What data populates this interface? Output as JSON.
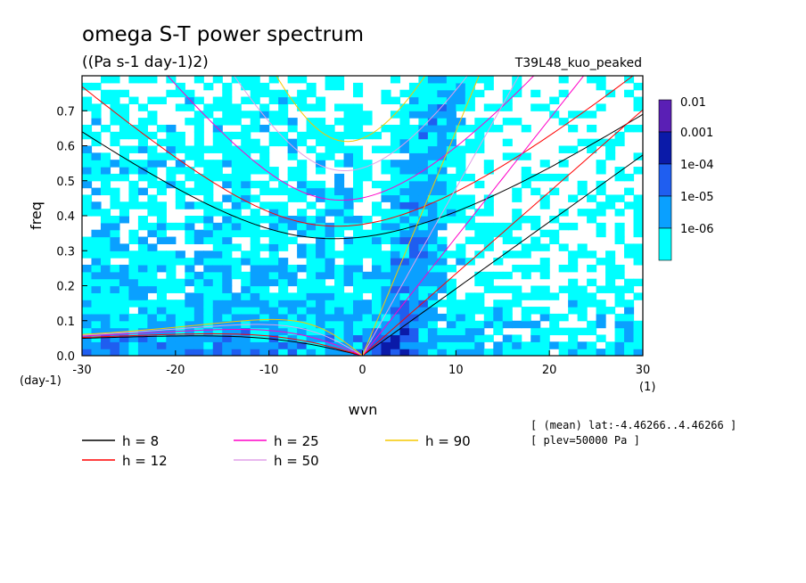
{
  "chart_data": {
    "type": "heatmap",
    "title": "omega S-T power spectrum",
    "subtitle": "((Pa s-1 day-1)2)",
    "experiment": "T39L48_kuo_peaked",
    "xlabel": "wvn",
    "ylabel": "freq",
    "x_unit": "(1)",
    "y_unit": "(day-1)",
    "xlim": [
      -30,
      30
    ],
    "ylim": [
      0,
      0.8
    ],
    "x_ticks": [
      "-30",
      "-20",
      "-10",
      "0",
      "10",
      "20",
      "30"
    ],
    "y_ticks": [
      "0.0",
      "0.1",
      "0.2",
      "0.3",
      "0.4",
      "0.5",
      "0.6",
      "0.7"
    ],
    "colorbar": {
      "labels": [
        "0.01",
        "0.001",
        "1e-04",
        "1e-05",
        "1e-06"
      ],
      "colors": [
        "#5a1fb5",
        "#0a1aa8",
        "#1f5ef0",
        "#0aa0ff",
        "#00ffff"
      ]
    },
    "contour_levels": [
      1e-06,
      1e-05,
      0.0001,
      0.001,
      0.01
    ],
    "dispersion_curves": [
      {
        "name": "h =  8",
        "color": "#000000",
        "h": 8
      },
      {
        "name": "h = 12",
        "color": "#ff0000",
        "h": 12
      },
      {
        "name": "h = 25",
        "color": "#ff00c8",
        "h": 25
      },
      {
        "name": "h = 50",
        "color": "#e0a0e8",
        "h": 50
      },
      {
        "name": "h = 90",
        "color": "#f5c800",
        "h": 90
      }
    ],
    "annotations": [
      "[ (mean) lat:-4.46266..4.46266 ]",
      "[ plev=50000 Pa ]"
    ],
    "grid": false,
    "legend_position": "bottom"
  }
}
